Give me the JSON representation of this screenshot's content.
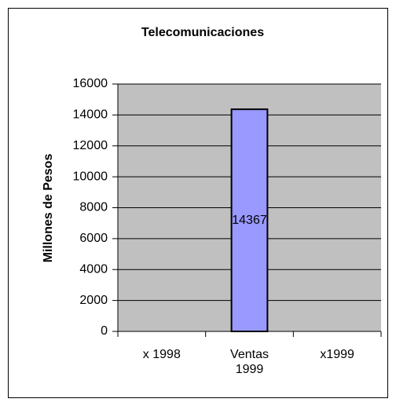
{
  "chart_data": {
    "type": "bar",
    "title": "Telecomunicaciones",
    "y_label": "Millones de Pesos",
    "categories": [
      "x 1998",
      "Ventas 1999",
      "x1999"
    ],
    "values": [
      null,
      14367,
      null
    ],
    "color": "#9999ff",
    "ylim": [
      0,
      16000
    ],
    "yticks": [
      0,
      2000,
      4000,
      6000,
      8000,
      10000,
      12000,
      14000,
      16000
    ],
    "grid": true,
    "data_labels": true
  }
}
